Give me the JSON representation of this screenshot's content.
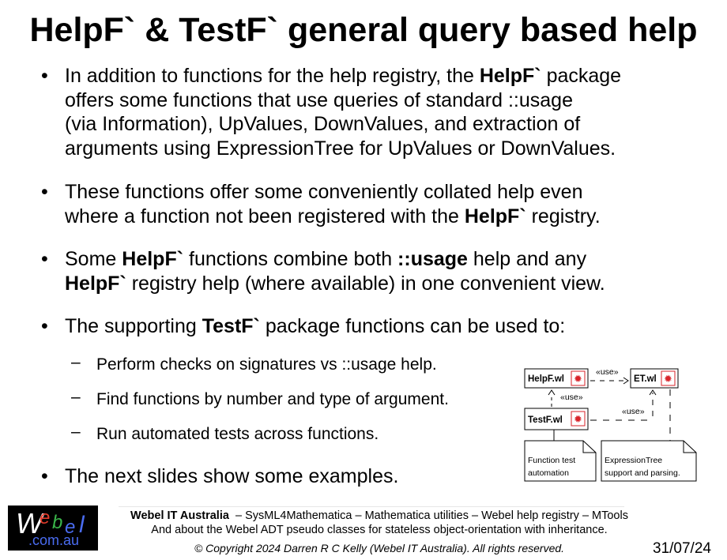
{
  "title": "HelpF` & TestF` general query based help",
  "bullets": [
    {
      "lines": [
        [
          {
            "t": "In addition to functions for the help registry, the "
          },
          {
            "t": "HelpF`",
            "b": true
          },
          {
            "t": " package"
          }
        ],
        [
          {
            "t": "offers some functions that use queries of standard ::usage"
          }
        ],
        [
          {
            "t": "(via Information), UpValues, DownValues, and extraction of"
          }
        ],
        [
          {
            "t": "arguments using ExpressionTree for UpValues or DownValues."
          }
        ]
      ]
    },
    {
      "lines": [
        [
          {
            "t": "These functions offer some conveniently collated help even"
          }
        ],
        [
          {
            "t": "where a function not been registered with the "
          },
          {
            "t": "HelpF`",
            "b": true
          },
          {
            "t": " registry."
          }
        ]
      ]
    },
    {
      "lines": [
        [
          {
            "t": "Some "
          },
          {
            "t": "HelpF`",
            "b": true
          },
          {
            "t": " functions combine both "
          },
          {
            "t": "::usage",
            "b": true
          },
          {
            "t": " help and any"
          }
        ],
        [
          {
            "t": "HelpF`",
            "b": true
          },
          {
            "t": " registry help (where available) in one convenient view."
          }
        ]
      ]
    },
    {
      "lines": [
        [
          {
            "t": "The supporting "
          },
          {
            "t": "TestF`",
            "b": true
          },
          {
            "t": " package functions can be used to:"
          }
        ]
      ]
    },
    {
      "lines": [
        [
          {
            "t": "The next slides show some examples."
          }
        ]
      ]
    }
  ],
  "sub_bullets": [
    "Perform checks on signatures vs ::usage help.",
    "Find functions by number and type of argument.",
    "Run automated tests across functions."
  ],
  "bullet_symbol": "•",
  "sub_bullet_symbol": "–",
  "diagram": {
    "blocks": {
      "helpf": "HelpF.wl",
      "et": "ET.wl",
      "testf": "TestF.wl"
    },
    "stereotype": "«use»",
    "notes": {
      "testf": [
        "Function test",
        "automation"
      ],
      "et": [
        "ExpressionTree",
        "support and parsing."
      ]
    },
    "icon_color": "#d8232a"
  },
  "footer": {
    "logo": {
      "w": "W",
      "e1": "e",
      "b": "b",
      "e2": "e",
      "l": "l",
      "domain": ".com.au"
    },
    "line1_bold": "Webel IT Australia",
    "line1_rest": "  – SysML4Mathematica – Mathematica utilities – Webel help registry – MTools",
    "line2": "And about the Webel ADT pseudo classes for stateless object-orientation with inheritance.",
    "copyright": "© Copyright 2024 Darren R C Kelly (Webel IT Australia). All rights reserved.",
    "date": "31/07/24"
  }
}
